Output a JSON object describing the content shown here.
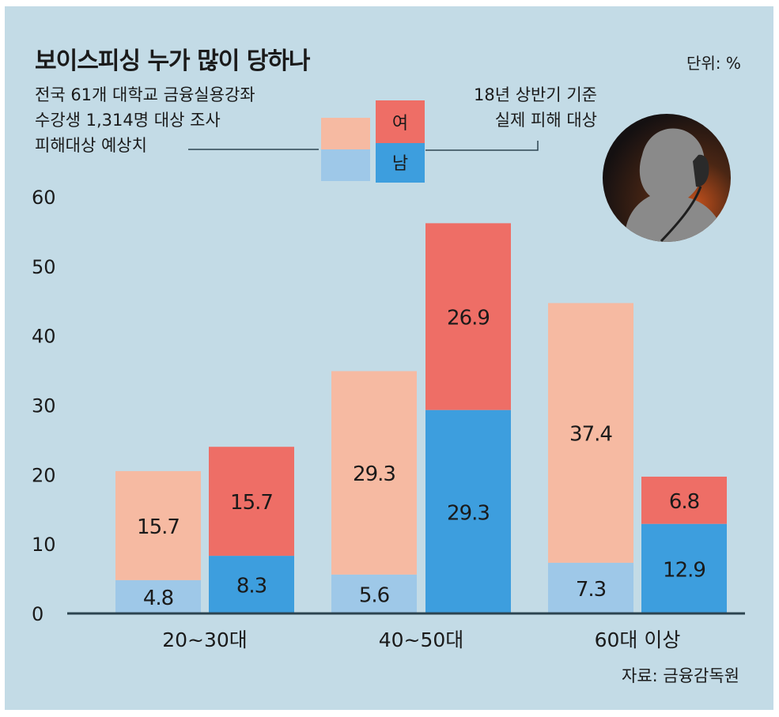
{
  "title": "보이스피싱 누가 많이 당하나",
  "unit": "단위: %",
  "legend": {
    "estimate_note_lines": [
      "전국 61개 대학교 금융실용강좌",
      "수강생 1,314명 대상 조사",
      "피해대상 예상치"
    ],
    "actual_note_lines": [
      "18년 상반기 기준",
      "실제 피해 대상"
    ],
    "female": "여",
    "male": "남"
  },
  "source": "자료: 금융감독원",
  "colors": {
    "background": "#c3dbe6",
    "estimate_female": "#f6baa2",
    "estimate_male": "#9ec8e8",
    "actual_female": "#ee6e66",
    "actual_male": "#3d9ede",
    "axis": "#2c4450"
  },
  "chart_data": {
    "type": "bar",
    "stacked": true,
    "categories": [
      "20~30대",
      "40~50대",
      "60대 이상"
    ],
    "yticks": [
      0,
      10,
      20,
      30,
      40,
      50,
      60
    ],
    "ylim": [
      0,
      60
    ],
    "groups": [
      {
        "name": "피해대상 예상치",
        "series": [
          {
            "name": "남",
            "values": [
              4.8,
              5.6,
              7.3
            ]
          },
          {
            "name": "여",
            "values": [
              15.7,
              29.3,
              37.4
            ]
          }
        ]
      },
      {
        "name": "실제 피해 대상",
        "series": [
          {
            "name": "남",
            "values": [
              8.3,
              29.3,
              12.9
            ]
          },
          {
            "name": "여",
            "values": [
              15.7,
              26.9,
              6.8
            ]
          }
        ]
      }
    ]
  }
}
